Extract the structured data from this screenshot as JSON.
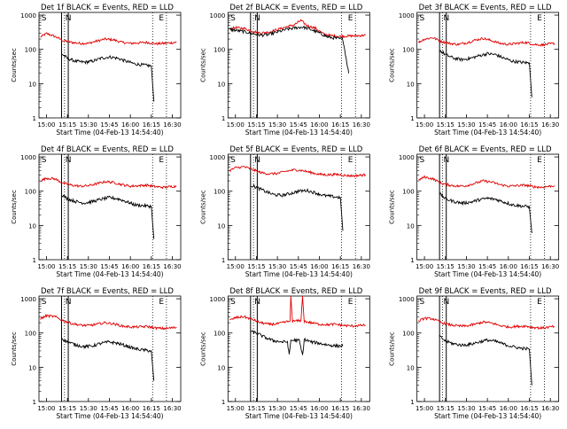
{
  "page": {
    "background": "#ffffff",
    "colors": {
      "events": "#000000",
      "lld": "#e00000",
      "axis": "#000000"
    }
  },
  "common": {
    "ylabel": "Counts/sec",
    "xlabel": "Start Time (04-Feb-13 14:54:40)",
    "xticks": [
      "15:00",
      "15:15",
      "15:30",
      "15:45",
      "16:00",
      "16:15",
      "16:30"
    ],
    "xtick_values": [
      15.0,
      15.25,
      15.5,
      15.75,
      16.0,
      16.25,
      16.5
    ],
    "yticks": [
      "1",
      "10",
      "100",
      "1000"
    ],
    "ytick_values": [
      1,
      10,
      100,
      1000
    ],
    "xlim": [
      14.911,
      16.6
    ],
    "ylim": [
      1,
      1200
    ],
    "yscale": "log",
    "markers": {
      "S": 14.93,
      "N1": 15.215,
      "N2": 15.26,
      "E": 16.33
    },
    "dotted_lines": [
      15.215,
      16.265,
      16.43
    ],
    "solid_lines": [
      15.18,
      15.26
    ]
  },
  "chart_data": [
    {
      "type": "line",
      "title": "Det 1f BLACK = Events, RED = LLD",
      "series": [
        {
          "name": "Events",
          "values_ref": "black"
        },
        {
          "name": "LLD",
          "values_ref": "red"
        }
      ],
      "red": {
        "x": [
          14.93,
          15.0,
          15.1,
          15.2,
          15.3,
          15.4,
          15.5,
          15.6,
          15.7,
          15.8,
          15.9,
          16.0,
          16.1,
          16.2,
          16.3,
          16.4,
          16.55
        ],
        "y": [
          230,
          290,
          240,
          180,
          160,
          150,
          150,
          175,
          200,
          190,
          160,
          150,
          155,
          160,
          145,
          150,
          160
        ]
      },
      "black": {
        "x": [
          15.18,
          15.25,
          15.35,
          15.45,
          15.55,
          15.65,
          15.75,
          15.85,
          15.95,
          16.05,
          16.15,
          16.25,
          16.28
        ],
        "y": [
          75,
          55,
          45,
          42,
          45,
          55,
          60,
          55,
          45,
          38,
          35,
          33,
          3
        ]
      }
    },
    {
      "type": "line",
      "title": "Det 2f BLACK = Events, RED = LLD",
      "series": [
        {
          "name": "Events",
          "values_ref": "black"
        },
        {
          "name": "LLD",
          "values_ref": "red"
        }
      ],
      "red": {
        "x": [
          14.93,
          15.0,
          15.1,
          15.2,
          15.3,
          15.4,
          15.5,
          15.6,
          15.7,
          15.78,
          15.85,
          15.95,
          16.05,
          16.15,
          16.25,
          16.35,
          16.45,
          16.55
        ],
        "y": [
          400,
          430,
          410,
          340,
          300,
          320,
          380,
          450,
          520,
          700,
          500,
          420,
          280,
          250,
          240,
          245,
          250,
          260
        ]
      },
      "black": {
        "x": [
          14.93,
          15.0,
          15.1,
          15.2,
          15.3,
          15.4,
          15.5,
          15.6,
          15.7,
          15.8,
          15.9,
          16.0,
          16.1,
          16.2,
          16.28,
          16.35
        ],
        "y": [
          380,
          360,
          330,
          290,
          260,
          270,
          320,
          380,
          420,
          450,
          380,
          300,
          230,
          210,
          200,
          20
        ]
      }
    },
    {
      "type": "line",
      "title": "Det 3f BLACK = Events, RED = LLD",
      "series": [
        {
          "name": "Events",
          "values_ref": "black"
        },
        {
          "name": "LLD",
          "values_ref": "red"
        }
      ],
      "red": {
        "x": [
          14.93,
          15.0,
          15.1,
          15.2,
          15.3,
          15.4,
          15.5,
          15.6,
          15.7,
          15.8,
          15.9,
          16.0,
          16.1,
          16.2,
          16.3,
          16.4,
          16.55
        ],
        "y": [
          160,
          200,
          220,
          170,
          150,
          140,
          155,
          185,
          210,
          180,
          150,
          140,
          150,
          160,
          140,
          135,
          150
        ]
      },
      "black": {
        "x": [
          15.18,
          15.25,
          15.35,
          15.45,
          15.55,
          15.65,
          15.75,
          15.85,
          15.95,
          16.05,
          16.15,
          16.25,
          16.28
        ],
        "y": [
          95,
          70,
          55,
          50,
          55,
          65,
          75,
          70,
          55,
          45,
          42,
          40,
          4
        ]
      }
    },
    {
      "type": "line",
      "title": "Det 4f BLACK = Events, RED = LLD",
      "series": [
        {
          "name": "Events",
          "values_ref": "black"
        },
        {
          "name": "LLD",
          "values_ref": "red"
        }
      ],
      "red": {
        "x": [
          14.93,
          15.0,
          15.1,
          15.2,
          15.3,
          15.4,
          15.5,
          15.6,
          15.7,
          15.8,
          15.9,
          16.0,
          16.1,
          16.2,
          16.3,
          16.4,
          16.55
        ],
        "y": [
          200,
          240,
          230,
          170,
          150,
          140,
          145,
          165,
          190,
          180,
          155,
          140,
          145,
          150,
          135,
          130,
          140
        ]
      },
      "black": {
        "x": [
          15.18,
          15.25,
          15.35,
          15.45,
          15.55,
          15.65,
          15.75,
          15.85,
          15.95,
          16.05,
          16.15,
          16.25,
          16.28
        ],
        "y": [
          80,
          60,
          50,
          45,
          50,
          58,
          65,
          60,
          50,
          40,
          38,
          36,
          4
        ]
      }
    },
    {
      "type": "line",
      "title": "Det 5f BLACK = Events, RED = LLD",
      "series": [
        {
          "name": "Events",
          "values_ref": "black"
        },
        {
          "name": "LLD",
          "values_ref": "red"
        }
      ],
      "red": {
        "x": [
          14.93,
          15.0,
          15.1,
          15.2,
          15.3,
          15.4,
          15.5,
          15.6,
          15.7,
          15.8,
          15.9,
          16.0,
          16.1,
          16.2,
          16.3,
          16.4,
          16.55
        ],
        "y": [
          400,
          480,
          520,
          430,
          350,
          320,
          330,
          380,
          420,
          400,
          350,
          310,
          300,
          310,
          290,
          280,
          300
        ]
      },
      "black": {
        "x": [
          15.18,
          15.25,
          15.35,
          15.45,
          15.55,
          15.65,
          15.75,
          15.85,
          15.95,
          16.05,
          16.15,
          16.25,
          16.28
        ],
        "y": [
          150,
          130,
          100,
          80,
          75,
          85,
          100,
          105,
          90,
          75,
          70,
          65,
          7
        ]
      }
    },
    {
      "type": "line",
      "title": "Det 6f BLACK = Events, RED = LLD",
      "series": [
        {
          "name": "Events",
          "values_ref": "black"
        },
        {
          "name": "LLD",
          "values_ref": "red"
        }
      ],
      "red": {
        "x": [
          14.93,
          15.0,
          15.1,
          15.2,
          15.3,
          15.4,
          15.5,
          15.6,
          15.7,
          15.8,
          15.9,
          16.0,
          16.1,
          16.2,
          16.3,
          16.4,
          16.55
        ],
        "y": [
          210,
          260,
          230,
          170,
          150,
          140,
          145,
          170,
          200,
          185,
          155,
          140,
          145,
          150,
          135,
          130,
          145
        ]
      },
      "black": {
        "x": [
          15.18,
          15.25,
          15.35,
          15.45,
          15.55,
          15.65,
          15.75,
          15.85,
          15.95,
          16.05,
          16.15,
          16.25,
          16.28
        ],
        "y": [
          85,
          60,
          50,
          45,
          48,
          56,
          62,
          58,
          48,
          40,
          37,
          35,
          6
        ]
      }
    },
    {
      "type": "line",
      "title": "Det 7f BLACK = Events, RED = LLD",
      "series": [
        {
          "name": "Events",
          "values_ref": "black"
        },
        {
          "name": "LLD",
          "values_ref": "red"
        }
      ],
      "red": {
        "x": [
          14.93,
          15.0,
          15.1,
          15.2,
          15.3,
          15.4,
          15.5,
          15.6,
          15.7,
          15.8,
          15.9,
          16.0,
          16.1,
          16.2,
          16.3,
          16.4,
          16.55
        ],
        "y": [
          260,
          320,
          300,
          230,
          190,
          170,
          165,
          180,
          200,
          185,
          160,
          150,
          150,
          155,
          140,
          135,
          145
        ]
      },
      "black": {
        "x": [
          15.18,
          15.25,
          15.35,
          15.45,
          15.55,
          15.65,
          15.75,
          15.85,
          15.95,
          16.05,
          16.15,
          16.25,
          16.28
        ],
        "y": [
          70,
          55,
          45,
          40,
          42,
          50,
          55,
          50,
          42,
          35,
          32,
          30,
          4
        ]
      }
    },
    {
      "type": "line",
      "title": "Det 8f BLACK = Events, RED = LLD",
      "series": [
        {
          "name": "Events",
          "values_ref": "black"
        },
        {
          "name": "LLD",
          "values_ref": "red"
        }
      ],
      "red": {
        "x": [
          14.93,
          15.0,
          15.1,
          15.2,
          15.3,
          15.4,
          15.5,
          15.6,
          15.65,
          15.66,
          15.68,
          15.78,
          15.8,
          15.82,
          15.9,
          16.0,
          16.1,
          16.2,
          16.3,
          16.4,
          16.55
        ],
        "y": [
          230,
          280,
          300,
          250,
          200,
          180,
          185,
          210,
          220,
          1200,
          220,
          230,
          1200,
          220,
          200,
          180,
          175,
          180,
          165,
          160,
          170
        ]
      },
      "black": {
        "x": [
          15.18,
          15.25,
          15.35,
          15.45,
          15.55,
          15.62,
          15.64,
          15.66,
          15.7,
          15.76,
          15.8,
          15.82,
          15.9,
          16.0,
          16.1,
          16.2,
          16.28
        ],
        "y": [
          110,
          100,
          75,
          60,
          55,
          55,
          22,
          60,
          62,
          60,
          22,
          65,
          55,
          50,
          45,
          42,
          42
        ]
      }
    },
    {
      "type": "line",
      "title": "Det 9f BLACK = Events, RED = LLD",
      "series": [
        {
          "name": "Events",
          "values_ref": "black"
        },
        {
          "name": "LLD",
          "values_ref": "red"
        }
      ],
      "red": {
        "x": [
          14.93,
          15.0,
          15.1,
          15.2,
          15.3,
          15.4,
          15.5,
          15.6,
          15.7,
          15.8,
          15.9,
          16.0,
          16.1,
          16.2,
          16.3,
          16.4,
          16.55
        ],
        "y": [
          220,
          270,
          260,
          200,
          175,
          160,
          160,
          180,
          210,
          195,
          165,
          150,
          155,
          160,
          145,
          140,
          155
        ]
      },
      "black": {
        "x": [
          15.18,
          15.25,
          15.35,
          15.45,
          15.55,
          15.65,
          15.75,
          15.85,
          15.95,
          16.05,
          16.15,
          16.25,
          16.28
        ],
        "y": [
          80,
          58,
          48,
          44,
          47,
          55,
          62,
          57,
          47,
          40,
          36,
          34,
          3
        ]
      }
    }
  ]
}
